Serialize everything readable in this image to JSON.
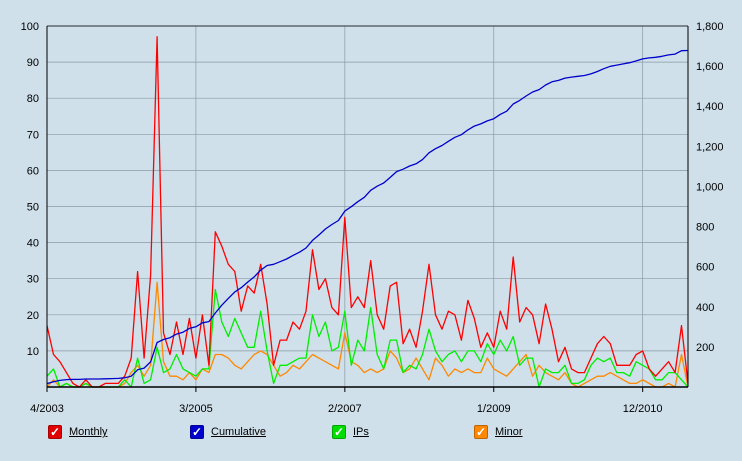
{
  "chart_data": {
    "type": "line",
    "x_tick_labels": [
      "4/2003",
      "3/2005",
      "2/2007",
      "1/2009",
      "12/2010"
    ],
    "x_tick_months": [
      0,
      23,
      46,
      69,
      92
    ],
    "y_left": {
      "ticks": [
        "100",
        "90",
        "80",
        "70",
        "60",
        "50",
        "40",
        "30",
        "20",
        "10"
      ],
      "range": [
        0,
        100
      ]
    },
    "y_right": {
      "ticks": [
        "1,800",
        "1,600",
        "1,400",
        "1,200",
        "1,000",
        "800",
        "600",
        "400",
        "200"
      ],
      "range": [
        0,
        1800
      ]
    },
    "grid": true,
    "legend_position": "bottom",
    "series": [
      {
        "name": "Monthly",
        "color": "#ff0000",
        "axis": "left",
        "values": [
          17,
          9,
          7,
          4,
          1,
          0,
          2,
          0,
          0,
          1,
          1,
          1,
          3,
          8,
          32,
          8,
          31,
          97,
          15,
          9,
          18,
          9,
          19,
          8,
          20,
          6,
          43,
          39,
          34,
          32,
          21,
          28,
          26,
          34,
          23,
          6,
          13,
          13,
          18,
          16,
          21,
          38,
          27,
          30,
          22,
          20,
          47,
          22,
          25,
          22,
          35,
          20,
          16,
          28,
          29,
          12,
          16,
          11,
          21,
          34,
          20,
          16,
          21,
          20,
          13,
          24,
          19,
          11,
          15,
          11,
          21,
          16,
          36,
          18,
          22,
          20,
          12,
          23,
          16,
          7,
          11,
          5,
          4,
          4,
          8,
          12,
          14,
          12,
          6,
          6,
          6,
          9,
          10,
          5,
          3,
          5,
          7,
          4,
          17,
          1
        ]
      },
      {
        "name": "Cumulative",
        "color": "#0000cc",
        "axis": "right",
        "values": [
          17,
          26,
          33,
          37,
          38,
          38,
          40,
          40,
          40,
          41,
          42,
          43,
          46,
          54,
          86,
          94,
          125,
          222,
          237,
          246,
          264,
          273,
          292,
          300,
          320,
          326,
          369,
          408,
          442,
          474,
          495,
          523,
          549,
          583,
          606,
          612,
          625,
          638,
          656,
          672,
          693,
          731,
          758,
          788,
          810,
          830,
          877,
          899,
          924,
          946,
          981,
          1001,
          1017,
          1045,
          1074,
          1086,
          1102,
          1113,
          1134,
          1168,
          1188,
          1204,
          1225,
          1245,
          1258,
          1282,
          1301,
          1312,
          1327,
          1338,
          1359,
          1375,
          1411,
          1429,
          1451,
          1471,
          1483,
          1506,
          1522,
          1529,
          1540,
          1545,
          1549,
          1553,
          1561,
          1573,
          1587,
          1599,
          1605,
          1611,
          1617,
          1626,
          1636,
          1641,
          1644,
          1649,
          1656,
          1660,
          1677,
          1678
        ]
      },
      {
        "name": "IPs",
        "color": "#00ee00",
        "axis": "left",
        "values": [
          3,
          5,
          0,
          1,
          0,
          0,
          1,
          0,
          0,
          0,
          0,
          0,
          2,
          0,
          8,
          1,
          2,
          11,
          4,
          5,
          9,
          5,
          4,
          3,
          5,
          5,
          27,
          18,
          14,
          19,
          15,
          11,
          11,
          21,
          10,
          1,
          6,
          6,
          7,
          8,
          8,
          20,
          14,
          18,
          10,
          11,
          21,
          6,
          13,
          10,
          22,
          9,
          5,
          13,
          13,
          4,
          6,
          5,
          9,
          16,
          10,
          7,
          9,
          10,
          7,
          10,
          10,
          7,
          12,
          9,
          13,
          10,
          14,
          6,
          8,
          8,
          0,
          5,
          4,
          4,
          6,
          1,
          1,
          2,
          6,
          8,
          7,
          8,
          4,
          4,
          3,
          7,
          6,
          5,
          2,
          2,
          4,
          4,
          2,
          0
        ]
      },
      {
        "name": "Minor",
        "color": "#ff8800",
        "axis": "left",
        "values": [
          0,
          2,
          0,
          1,
          0,
          0,
          1,
          0,
          0,
          0,
          0,
          0,
          1,
          4,
          6,
          3,
          6,
          29,
          7,
          3,
          3,
          2,
          4,
          2,
          5,
          4,
          9,
          9,
          8,
          6,
          5,
          7,
          9,
          10,
          9,
          6,
          3,
          4,
          6,
          5,
          7,
          9,
          8,
          7,
          6,
          5,
          15,
          7,
          6,
          4,
          5,
          4,
          5,
          10,
          8,
          4,
          5,
          8,
          5,
          2,
          8,
          6,
          3,
          5,
          4,
          5,
          4,
          4,
          8,
          5,
          4,
          3,
          5,
          7,
          9,
          3,
          6,
          4,
          3,
          2,
          4,
          1,
          0,
          1,
          2,
          3,
          3,
          4,
          3,
          2,
          1,
          1,
          2,
          1,
          0,
          0,
          1,
          0,
          9,
          0
        ]
      }
    ]
  }
}
